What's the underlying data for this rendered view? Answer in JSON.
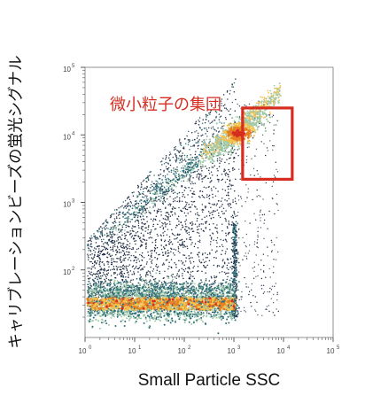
{
  "chart_data": {
    "type": "scatter",
    "title": "",
    "xlabel": "Small Particle SSC",
    "ylabel": "キャリブレーションビーズの蛍光シグナル",
    "xscale": "log",
    "yscale": "log",
    "xlim": [
      1,
      100000
    ],
    "ylim": [
      10,
      100000
    ],
    "x_tick_values": [
      1,
      10,
      100,
      1000,
      10000,
      100000
    ],
    "y_tick_values": [
      100,
      1000,
      10000,
      100000
    ],
    "tick_base": "10",
    "x_tick_exponents": [
      "0",
      "1",
      "2",
      "3",
      "4",
      "5"
    ],
    "y_tick_exponents": [
      "2",
      "3",
      "4",
      "5"
    ],
    "grid": false,
    "density_colors": [
      "#1f2a44",
      "#2e6f7a",
      "#9fc9a8",
      "#f2c14e",
      "#e67e22",
      "#d62d20"
    ],
    "annotation": {
      "text": "微小粒子の集団",
      "color": "#d62d20",
      "highlight_box_x": [
        1500,
        15000
      ],
      "highlight_box_y": [
        2200,
        25000
      ]
    }
  }
}
